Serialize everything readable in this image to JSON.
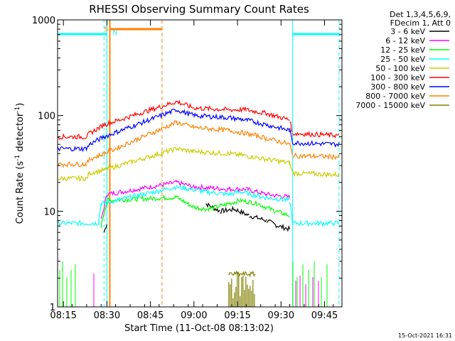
{
  "chart_data": {
    "type": "line",
    "title": "RHESSI Observing Summary Count Rates",
    "xlabel": "Start Time (11-Oct-08 08:13:02)",
    "ylabel": "Count Rate (s",
    "ylabel_sup1": "-1",
    "ylabel_mid": " detector",
    "ylabel_sup2": "-1",
    "ylabel_end": ")",
    "yscale": "log",
    "ylim": [
      1,
      1000
    ],
    "xlim": [
      "08:13",
      "09:51"
    ],
    "x_ticks": [
      "08:15",
      "08:30",
      "08:45",
      "09:00",
      "09:15",
      "09:30",
      "09:45"
    ],
    "y_ticks": [
      "1",
      "10",
      "100",
      "1000"
    ],
    "legend_header": [
      "Det 1,3,4,5,6,9,",
      "FDecim 1, Att 0"
    ],
    "series": [
      {
        "name": "3 - 6 keV",
        "color": "#000000",
        "points": [
          [
            "08:29",
            6
          ],
          [
            "08:30",
            7.5
          ],
          [
            "08:36",
            null
          ],
          [
            "08:52",
            null
          ],
          [
            "09:04",
            12
          ],
          [
            "09:09",
            10
          ],
          [
            "09:14",
            10.5
          ],
          [
            "09:19",
            9
          ],
          [
            "09:25",
            8
          ],
          [
            "09:29",
            7
          ],
          [
            "09:33",
            6.5
          ]
        ]
      },
      {
        "name": "6 - 12 keV",
        "color": "#ff00ff",
        "points": [
          [
            "08:28",
            8
          ],
          [
            "08:30",
            15
          ],
          [
            "08:54",
            20
          ],
          [
            "09:00",
            18
          ],
          [
            "09:12",
            17
          ],
          [
            "09:18",
            17
          ],
          [
            "09:25",
            15
          ],
          [
            "09:33",
            14
          ]
        ]
      },
      {
        "name": "12 - 25 keV",
        "color": "#00ff00",
        "points": [
          [
            "08:28",
            7
          ],
          [
            "08:30",
            13
          ],
          [
            "08:54",
            14
          ],
          [
            "09:00",
            11
          ],
          [
            "09:05",
            10.5
          ],
          [
            "09:12",
            12
          ],
          [
            "09:16",
            13
          ],
          [
            "09:22",
            12
          ],
          [
            "09:28",
            10
          ],
          [
            "09:33",
            9
          ]
        ]
      },
      {
        "name": "25 - 50 keV",
        "color": "#00ffff",
        "points": [
          [
            "08:13",
            7.5
          ],
          [
            "08:27",
            7.5
          ],
          [
            "08:28",
            12
          ],
          [
            "08:54",
            18
          ],
          [
            "09:04",
            16
          ],
          [
            "09:12",
            15
          ],
          [
            "09:16",
            16
          ],
          [
            "09:24",
            14
          ],
          [
            "09:33",
            13
          ],
          [
            "09:34",
            7.5
          ],
          [
            "09:50",
            7.5
          ]
        ]
      },
      {
        "name": "50 - 100 keV",
        "color": "#cccc00",
        "points": [
          [
            "08:13",
            22
          ],
          [
            "08:23",
            22
          ],
          [
            "08:24",
            25
          ],
          [
            "08:29",
            27
          ],
          [
            "08:54",
            45
          ],
          [
            "09:00",
            42
          ],
          [
            "09:12",
            40
          ],
          [
            "09:18",
            38
          ],
          [
            "09:25",
            35
          ],
          [
            "09:33",
            32
          ],
          [
            "09:34",
            25
          ],
          [
            "09:50",
            24
          ]
        ]
      },
      {
        "name": "100 - 300 keV",
        "color": "#ff0000",
        "points": [
          [
            "08:13",
            60
          ],
          [
            "08:23",
            60
          ],
          [
            "08:24",
            65
          ],
          [
            "08:29",
            80
          ],
          [
            "08:54",
            140
          ],
          [
            "09:00",
            120
          ],
          [
            "09:12",
            115
          ],
          [
            "09:18",
            115
          ],
          [
            "09:25",
            105
          ],
          [
            "09:33",
            90
          ],
          [
            "09:34",
            65
          ],
          [
            "09:50",
            62
          ]
        ]
      },
      {
        "name": "300 - 800 keV",
        "color": "#0000ff",
        "points": [
          [
            "08:13",
            45
          ],
          [
            "08:23",
            45
          ],
          [
            "08:24",
            50
          ],
          [
            "08:29",
            60
          ],
          [
            "08:54",
            115
          ],
          [
            "09:00",
            100
          ],
          [
            "09:12",
            95
          ],
          [
            "09:18",
            90
          ],
          [
            "09:25",
            80
          ],
          [
            "09:33",
            70
          ],
          [
            "09:34",
            52
          ],
          [
            "09:50",
            50
          ]
        ]
      },
      {
        "name": "800 - 7000 keV",
        "color": "#ff8000",
        "points": [
          [
            "08:13",
            31
          ],
          [
            "08:23",
            31
          ],
          [
            "08:24",
            35
          ],
          [
            "08:29",
            40
          ],
          [
            "08:54",
            85
          ],
          [
            "09:00",
            75
          ],
          [
            "09:12",
            70
          ],
          [
            "09:18",
            65
          ],
          [
            "09:25",
            58
          ],
          [
            "09:33",
            50
          ],
          [
            "09:34",
            38
          ],
          [
            "09:50",
            37
          ]
        ]
      },
      {
        "name": "7000 - 15000 keV",
        "color": "#808000",
        "points": [
          [
            "09:12",
            2.2
          ],
          [
            "09:21",
            2.2
          ]
        ]
      }
    ],
    "annotations": [
      {
        "label": "S",
        "time": "08:31",
        "color": "#ff8000"
      },
      {
        "label": "N",
        "time": "08:31",
        "color": "#00ffff"
      }
    ],
    "timestamp": "15-Oct-2021 16:31"
  }
}
